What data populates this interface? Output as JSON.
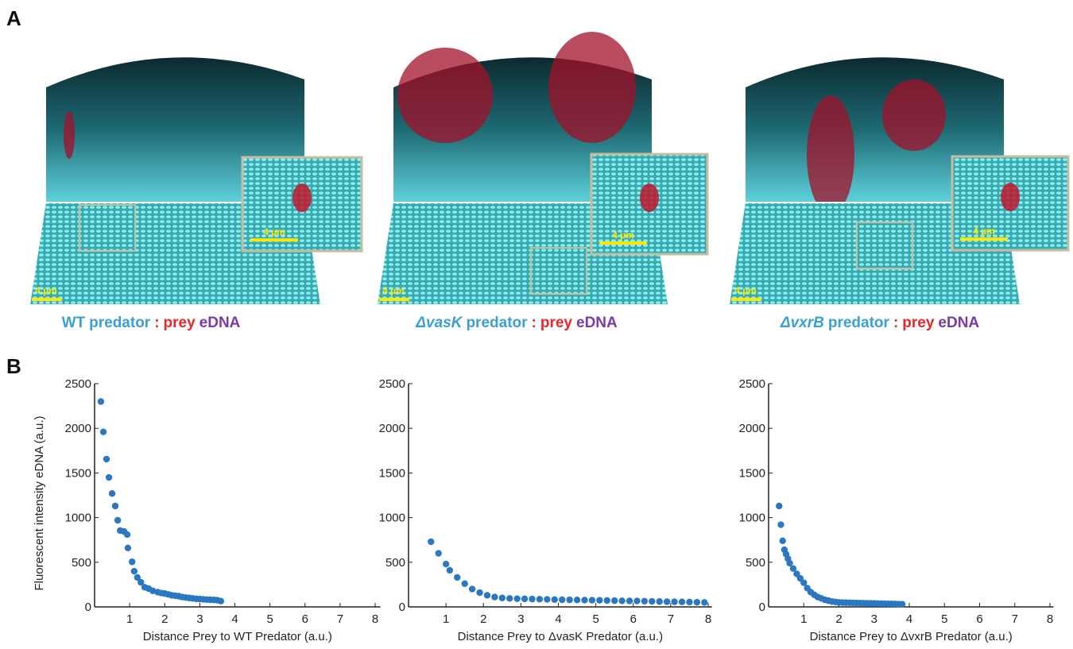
{
  "panel_labels": [
    "A",
    "B"
  ],
  "panel_a": [
    {
      "caption": {
        "strain": "WT",
        "predator": "predator",
        "sep": ":",
        "prey": "prey",
        "edna": "eDNA"
      },
      "scale_labels": [
        "4 µm",
        "4 µm"
      ]
    },
    {
      "caption": {
        "strain": "ΔvasK",
        "predator": "predator",
        "sep": ":",
        "prey": "prey",
        "edna": "eDNA"
      },
      "scale_labels": [
        "4 µm",
        "4 µm"
      ]
    },
    {
      "caption": {
        "strain": "ΔvxrB",
        "predator": "predator",
        "sep": ":",
        "prey": "prey",
        "edna": "eDNA"
      },
      "scale_labels": [
        "4 µm",
        "4 µm"
      ]
    }
  ],
  "chart_data": [
    {
      "type": "scatter",
      "ylabel": "Fluorescent intensity eDNA (a.u.)",
      "xlabel": "Distance Prey to WT Predator (a.u.)",
      "color": "#2a78c2",
      "x": [
        0.18,
        0.25,
        0.34,
        0.41,
        0.5,
        0.59,
        0.66,
        0.73,
        0.84,
        0.93,
        0.95,
        1.07,
        1.13,
        1.22,
        1.32,
        1.43,
        1.54,
        1.66,
        1.8,
        1.9,
        2.0,
        2.1,
        2.2,
        2.3,
        2.4,
        2.5,
        2.6,
        2.7,
        2.8,
        2.9,
        3.0,
        3.1,
        3.2,
        3.3,
        3.4,
        3.5,
        3.6
      ],
      "y": [
        2300,
        1960,
        1655,
        1450,
        1270,
        1130,
        970,
        855,
        845,
        810,
        660,
        505,
        400,
        330,
        275,
        220,
        205,
        180,
        165,
        155,
        150,
        140,
        130,
        125,
        120,
        110,
        105,
        100,
        95,
        90,
        88,
        85,
        82,
        80,
        78,
        75,
        65
      ],
      "xlim": [
        0,
        8.15
      ],
      "ylim": [
        0,
        2500
      ],
      "xticks": [
        1,
        2,
        3,
        4,
        5,
        6,
        7,
        8
      ],
      "yticks": [
        0,
        500,
        1000,
        1500,
        2000,
        2500
      ]
    },
    {
      "type": "scatter",
      "xlabel": "Distance Prey to ΔvasK Predator (a.u.)",
      "color": "#2a78c2",
      "x": [
        0.6,
        0.8,
        1.0,
        1.1,
        1.3,
        1.5,
        1.7,
        1.9,
        2.1,
        2.3,
        2.5,
        2.7,
        2.9,
        3.1,
        3.3,
        3.5,
        3.7,
        3.9,
        4.1,
        4.3,
        4.5,
        4.7,
        4.9,
        5.1,
        5.3,
        5.5,
        5.7,
        5.9,
        6.1,
        6.3,
        6.5,
        6.7,
        6.9,
        7.1,
        7.3,
        7.5,
        7.7,
        7.9
      ],
      "y": [
        730,
        600,
        480,
        410,
        330,
        260,
        200,
        160,
        130,
        110,
        100,
        95,
        92,
        90,
        88,
        86,
        84,
        82,
        80,
        79,
        78,
        76,
        75,
        74,
        72,
        70,
        68,
        67,
        66,
        64,
        62,
        60,
        58,
        57,
        56,
        54,
        52,
        50
      ],
      "xlim": [
        0,
        8.1
      ],
      "ylim": [
        0,
        2500
      ],
      "xticks": [
        1,
        2,
        3,
        4,
        5,
        6,
        7,
        8
      ],
      "yticks": [
        0,
        500,
        1000,
        1500,
        2000,
        2500
      ]
    },
    {
      "type": "scatter",
      "xlabel": "Distance Prey to ΔvxrB Predator (a.u.)",
      "color": "#2a78c2",
      "x": [
        0.3,
        0.35,
        0.4,
        0.45,
        0.5,
        0.55,
        0.6,
        0.7,
        0.8,
        0.9,
        1.0,
        1.1,
        1.2,
        1.3,
        1.4,
        1.5,
        1.6,
        1.7,
        1.8,
        1.9,
        2.0,
        2.1,
        2.2,
        2.3,
        2.4,
        2.5,
        2.6,
        2.7,
        2.8,
        2.9,
        3.0,
        3.1,
        3.2,
        3.3,
        3.4,
        3.5,
        3.6,
        3.7,
        3.8
      ],
      "y": [
        1130,
        920,
        740,
        640,
        590,
        540,
        490,
        430,
        370,
        320,
        270,
        210,
        165,
        135,
        110,
        95,
        80,
        70,
        60,
        55,
        50,
        48,
        47,
        46,
        45,
        44,
        43,
        42,
        41,
        40,
        39,
        38,
        37,
        36,
        35,
        34,
        33,
        31,
        30
      ],
      "xlim": [
        0,
        8.1
      ],
      "ylim": [
        0,
        2500
      ],
      "xticks": [
        1,
        2,
        3,
        4,
        5,
        6,
        7,
        8
      ],
      "yticks": [
        0,
        500,
        1000,
        1500,
        2000,
        2500
      ]
    }
  ]
}
